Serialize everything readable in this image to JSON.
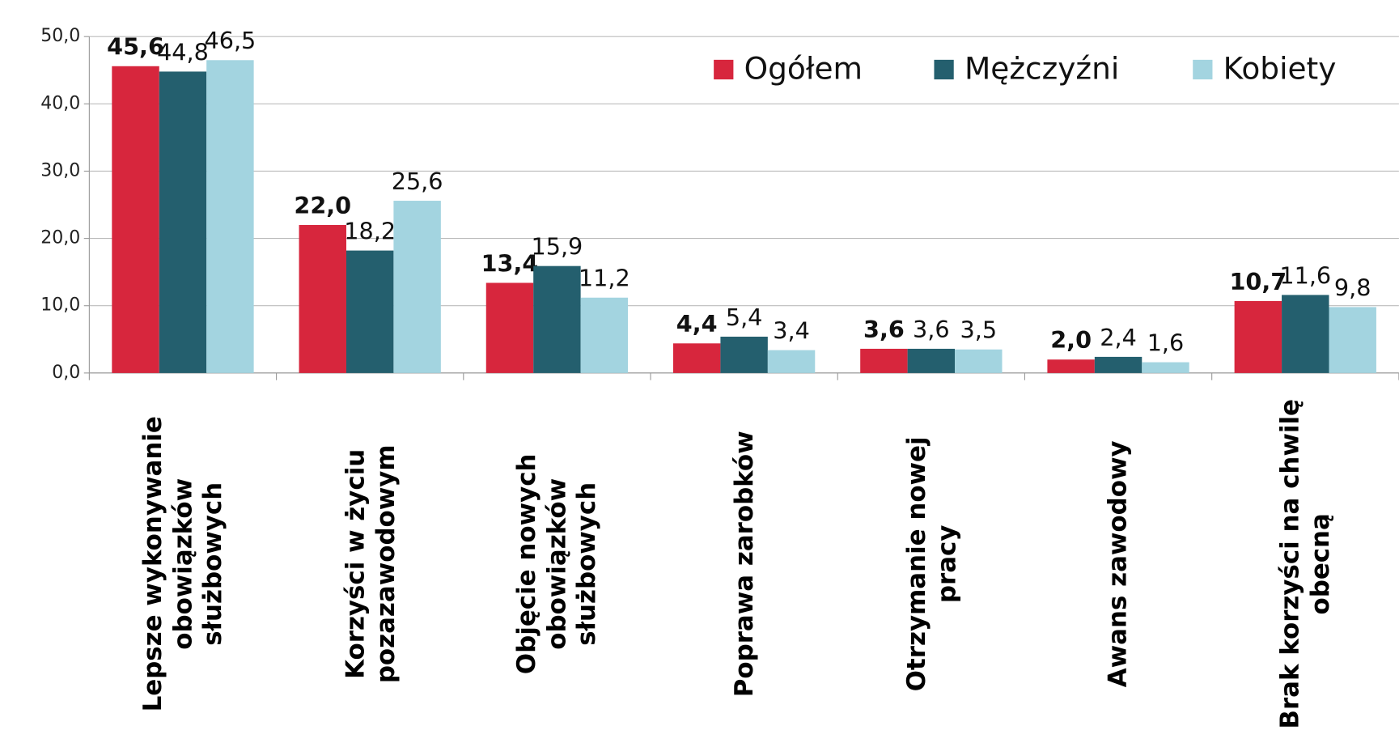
{
  "chart_data": {
    "type": "bar",
    "categories": [
      "Lepsze wykonywanie\nobowiązków\nsłużbowych",
      "Korzyści w życiu\npozazawodowym",
      "Objęcie nowych\nobowiązków\nsłużbowych",
      "Poprawa zarobków",
      "Otrzymanie nowej\npracy",
      "Awans zawodowy",
      "Brak korzyści na chwilę\nobecną"
    ],
    "series": [
      {
        "name": "Ogółem",
        "color": "#d7263d",
        "values": [
          45.6,
          22.0,
          13.4,
          4.4,
          3.6,
          2.0,
          10.7
        ],
        "value_labels": [
          "45,6",
          "22,0",
          "13,4",
          "4,4",
          "3,6",
          "2,0",
          "10,7"
        ]
      },
      {
        "name": "Mężczyźni",
        "color": "#245f6e",
        "values": [
          44.8,
          18.2,
          15.9,
          5.4,
          3.6,
          2.4,
          11.6
        ],
        "value_labels": [
          "44,8",
          "18,2",
          "15,9",
          "5,4",
          "3,6",
          "2,4",
          "11,6"
        ]
      },
      {
        "name": "Kobiety",
        "color": "#a3d4e0",
        "values": [
          46.5,
          25.6,
          11.2,
          3.4,
          3.5,
          1.6,
          9.8
        ],
        "value_labels": [
          "46,5",
          "25,6",
          "11,2",
          "3,4",
          "3,5",
          "1,6",
          "9,8"
        ]
      }
    ],
    "ylim": [
      0,
      50
    ],
    "yticks": [
      {
        "value": 0,
        "label": "0,0"
      },
      {
        "value": 10,
        "label": "10,0"
      },
      {
        "value": 20,
        "label": "20,0"
      },
      {
        "value": 30,
        "label": "30,0"
      },
      {
        "value": 40,
        "label": "40,0"
      },
      {
        "value": 50,
        "label": "50,0"
      }
    ],
    "grid": true,
    "legend": "top-right"
  }
}
